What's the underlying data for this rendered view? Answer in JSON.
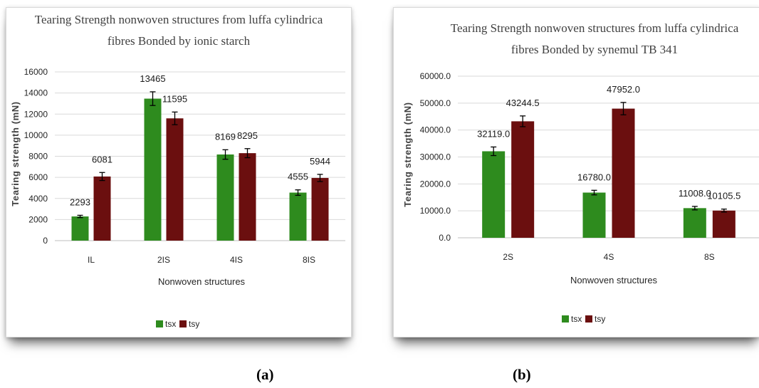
{
  "chart_data": [
    {
      "type": "bar",
      "title": "Tearing Strength nonwoven structures from luffa cylindrica fibres Bonded by ionic starch",
      "title_lines": [
        "Tearing Strength nonwoven structures from luffa cylindrica",
        "fibres Bonded by ionic starch"
      ],
      "xlabel": "Nonwoven structures",
      "ylabel": "Tearing strength (mN)",
      "categories": [
        "IL",
        "2IS",
        "4IS",
        "8IS"
      ],
      "series": [
        {
          "name": "tsx",
          "values": [
            2293,
            13465,
            8169,
            4555
          ],
          "labels": [
            "2293",
            "13465",
            "8169",
            "4555"
          ],
          "errors": [
            110,
            650,
            450,
            260
          ],
          "color": "#2e8b1e"
        },
        {
          "name": "tsy",
          "values": [
            6081,
            11595,
            8295,
            5944
          ],
          "labels": [
            "6081",
            "11595",
            "8295",
            "5944"
          ],
          "errors": [
            380,
            600,
            430,
            340
          ],
          "color": "#6b0f0f"
        }
      ],
      "ylim": [
        0,
        16000
      ],
      "yticks": [
        0,
        2000,
        4000,
        6000,
        8000,
        10000,
        12000,
        14000,
        16000
      ],
      "ytick_labels": [
        "0",
        "2000",
        "4000",
        "6000",
        "8000",
        "10000",
        "12000",
        "14000",
        "16000"
      ],
      "grid": true,
      "legend_position": "bottom",
      "panel_label": "(a)"
    },
    {
      "type": "bar",
      "title": "Tearing Strength nonwoven structures from luffa cylindrica fibres Bonded by synemul TB 341",
      "title_lines": [
        "Tearing Strength nonwoven structures from luffa cylindrica",
        "fibres Bonded by synemul TB 341"
      ],
      "xlabel": "Nonwoven structures",
      "ylabel": "Tearing strength (mN)",
      "categories": [
        "2S",
        "4S",
        "8S"
      ],
      "series": [
        {
          "name": "tsx",
          "values": [
            32119.0,
            16780.0,
            11008.0
          ],
          "labels": [
            "32119.0",
            "16780.0",
            "11008.0"
          ],
          "errors": [
            1600,
            850,
            650
          ],
          "color": "#2e8b1e"
        },
        {
          "name": "tsy",
          "values": [
            43244.5,
            47952.0,
            10105.5
          ],
          "labels": [
            "43244.5",
            "47952.0",
            "10105.5"
          ],
          "errors": [
            2000,
            2300,
            550
          ],
          "color": "#6b0f0f"
        }
      ],
      "ylim": [
        0,
        60000
      ],
      "yticks": [
        0,
        10000,
        20000,
        30000,
        40000,
        50000,
        60000
      ],
      "ytick_labels": [
        "0.0",
        "10000.0",
        "20000.0",
        "30000.0",
        "40000.0",
        "50000.0",
        "60000.0"
      ],
      "grid": true,
      "legend_position": "bottom",
      "panel_label": "(b)"
    }
  ]
}
